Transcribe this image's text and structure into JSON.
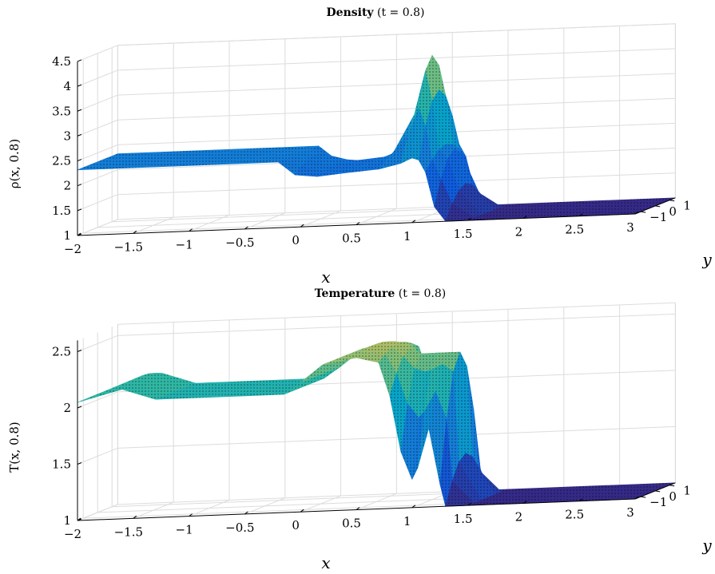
{
  "chart_data": [
    {
      "type": "surface",
      "title_bold": "Density",
      "title_rest": "(t = 0.8)",
      "xlabel": "x",
      "ylabel": "y",
      "zlabel": "ρ(x, 0.8)",
      "x_ticks": [
        "−2",
        "−1.5",
        "−1",
        "−0.5",
        "0",
        "0.5",
        "1",
        "1.5",
        "2",
        "2.5",
        "3"
      ],
      "y_ticks": [
        "−1",
        "0",
        "1"
      ],
      "z_ticks": [
        "1",
        "1.5",
        "2",
        "2.5",
        "3",
        "3.5",
        "4",
        "4.5"
      ],
      "xlim": [
        -2,
        3
      ],
      "ylim": [
        -1.4,
        1.4
      ],
      "zlim": [
        1,
        4.5
      ],
      "profile": {
        "x": [
          -2,
          -1.5,
          -1,
          -0.5,
          -0.2,
          -0.05,
          0.15,
          0.4,
          0.7,
          0.9,
          1.0,
          1.06,
          1.12,
          1.2,
          1.3,
          1.5,
          2,
          3
        ],
        "z_front": [
          2.32,
          2.32,
          2.32,
          2.32,
          2.32,
          2.05,
          2.0,
          2.05,
          2.1,
          2.2,
          2.3,
          2.25,
          2.0,
          1.3,
          1.0,
          1.0,
          1.0,
          1.0
        ],
        "z_back": [
          2.32,
          2.32,
          2.32,
          2.32,
          2.32,
          2.3,
          2.1,
          2.05,
          2.3,
          3.2,
          4.2,
          3.5,
          2.4,
          2.3,
          1.6,
          1.0,
          1.0,
          1.0
        ]
      }
    },
    {
      "type": "surface",
      "title_bold": "Temperature",
      "title_rest": "(t = 0.8)",
      "xlabel": "x",
      "ylabel": "y",
      "zlabel": "T(x, 0.8)",
      "x_ticks": [
        "−2",
        "−1.5",
        "−1",
        "−0.5",
        "0",
        "0.5",
        "1",
        "1.5",
        "2",
        "2.5",
        "3"
      ],
      "y_ticks": [
        "−1",
        "0",
        "1"
      ],
      "z_ticks": [
        "1",
        "1.5",
        "2",
        "2.5"
      ],
      "xlim": [
        -2,
        3
      ],
      "ylim": [
        -1.4,
        1.4
      ],
      "zlim": [
        1,
        2.6
      ],
      "profile": {
        "x": [
          -2,
          -1.6,
          -1.3,
          -1.0,
          -0.5,
          -0.15,
          0.0,
          0.2,
          0.5,
          0.7,
          0.8,
          0.9,
          1.0,
          1.05,
          1.15,
          1.25,
          1.3,
          1.5,
          2,
          3
        ],
        "z_front": [
          2.05,
          2.15,
          2.05,
          2.05,
          2.05,
          2.05,
          2.15,
          2.3,
          2.35,
          2.3,
          2.0,
          1.5,
          1.25,
          1.35,
          1.7,
          1.2,
          1.0,
          1.0,
          1.0,
          1.0
        ],
        "z_back": [
          2.05,
          2.2,
          2.05,
          2.05,
          2.05,
          2.05,
          2.15,
          2.3,
          2.4,
          2.4,
          2.35,
          2.3,
          2.3,
          2.3,
          2.3,
          2.3,
          1.4,
          1.0,
          1.0,
          1.0
        ]
      }
    }
  ]
}
